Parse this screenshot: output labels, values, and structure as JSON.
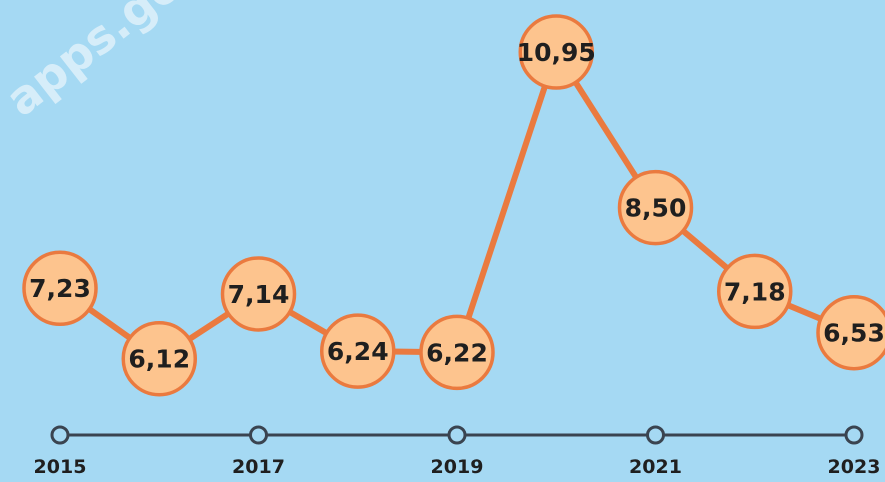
{
  "watermark": "apps.go",
  "chart_data": {
    "type": "line",
    "x": [
      2015,
      2016,
      2017,
      2018,
      2019,
      2020,
      2021,
      2022,
      2023
    ],
    "values": [
      7.23,
      6.12,
      7.14,
      6.24,
      6.22,
      10.95,
      8.5,
      7.18,
      6.53
    ],
    "value_labels": [
      "7,23",
      "6,12",
      "7,14",
      "6,24",
      "6,22",
      "10,95",
      "8,50",
      "7,18",
      "6,53"
    ],
    "x_tick_labels": [
      "2015",
      "2017",
      "2019",
      "2021",
      "2023"
    ],
    "x_tick_values": [
      2015,
      2017,
      2019,
      2021,
      2023
    ],
    "title": "",
    "xlabel": "",
    "ylabel": "",
    "grid": false,
    "legend": "none",
    "colors": {
      "background": "#a5d9f3",
      "line": "#ea7a3f",
      "marker_fill": "#fdc48e",
      "marker_stroke": "#ea7a3f",
      "axis": "#3a4450",
      "text": "#1f1f1f"
    }
  }
}
